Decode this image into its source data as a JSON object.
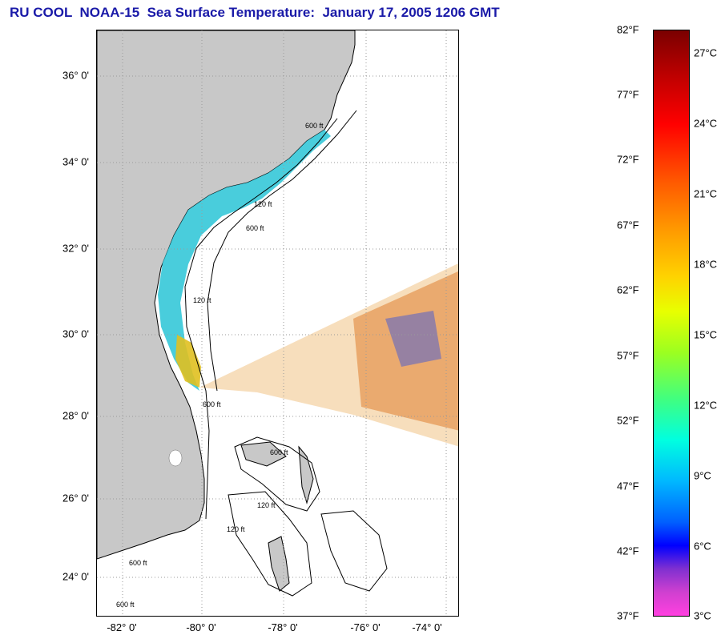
{
  "title": "RU COOL  NOAA-15  Sea Surface Temperature:  January 17, 2005 1206 GMT",
  "map": {
    "lat_labels": [
      "36° 0'",
      "34° 0'",
      "32° 0'",
      "30° 0'",
      "28° 0'",
      "26° 0'",
      "24° 0'"
    ],
    "lon_labels": [
      "-82° 0'",
      "-80° 0'",
      "-78° 0'",
      "-76° 0'",
      "-74° 0'"
    ],
    "contour_labels": [
      "600 ft",
      "120 ft",
      "600 ft",
      "120 ft",
      "600 ft",
      "600 ft",
      "120 ft",
      "120 ft",
      "600 ft",
      "600 ft"
    ],
    "colors": {
      "land": "#c8c8c8",
      "ocean_nodata": "#ffffff",
      "grid": "#9a9a9a"
    }
  },
  "colorbar": {
    "fahrenheit_labels": [
      "82°F",
      "77°F",
      "72°F",
      "67°F",
      "62°F",
      "57°F",
      "52°F",
      "47°F",
      "42°F",
      "37°F"
    ],
    "celsius_labels": [
      "27°C",
      "24°C",
      "21°C",
      "18°C",
      "15°C",
      "12°C",
      "9°C",
      "6°C",
      "3°C"
    ],
    "range_f": [
      37,
      82
    ],
    "range_c": [
      3,
      27
    ]
  }
}
